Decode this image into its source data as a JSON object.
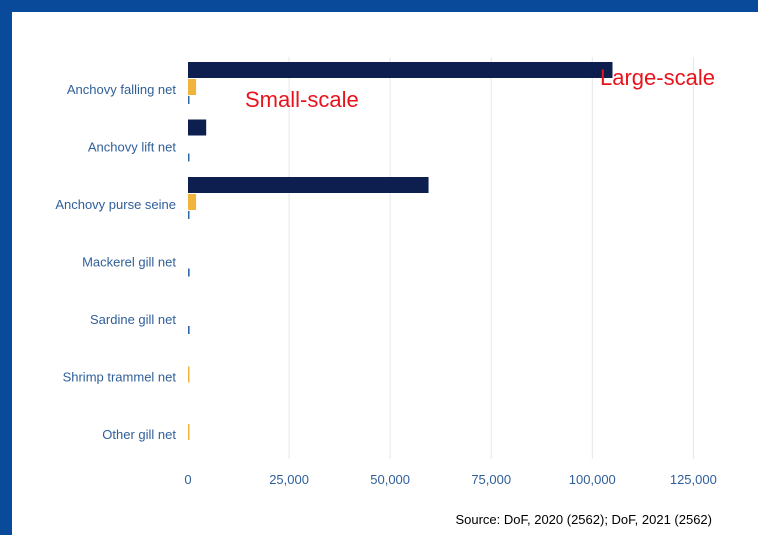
{
  "chart_data": {
    "type": "bar",
    "orientation": "horizontal",
    "categories": [
      "Anchovy falling net",
      "Anchovy lift net",
      "Anchovy purse seine",
      "Mackerel gill net",
      "Sardine gill net",
      "Shrimp trammel net",
      "Other gill net"
    ],
    "series": [
      {
        "name": "Large-scale",
        "color": "#0d1f4e",
        "values": [
          105000,
          4500,
          59500,
          0,
          0,
          0,
          0
        ]
      },
      {
        "name": "Small-scale",
        "color": "#f0b43c",
        "values": [
          2000,
          0,
          2000,
          0,
          0,
          300,
          300
        ]
      },
      {
        "name": "",
        "color": "#2f6aa8",
        "values": [
          300,
          300,
          300,
          400,
          400,
          0,
          0
        ]
      }
    ],
    "xlim": [
      0,
      140000
    ],
    "xticks": [
      0,
      25000,
      50000,
      75000,
      100000,
      125000
    ],
    "xtick_labels": [
      "0",
      "25,000",
      "50,000",
      "75,000",
      "100,000",
      "125,000"
    ],
    "grid": true,
    "annotations": {
      "large_scale": "Large-scale",
      "small_scale": "Small-scale"
    }
  },
  "source": "Source: DoF, 2020 (2562); DoF, 2021 (2562)"
}
